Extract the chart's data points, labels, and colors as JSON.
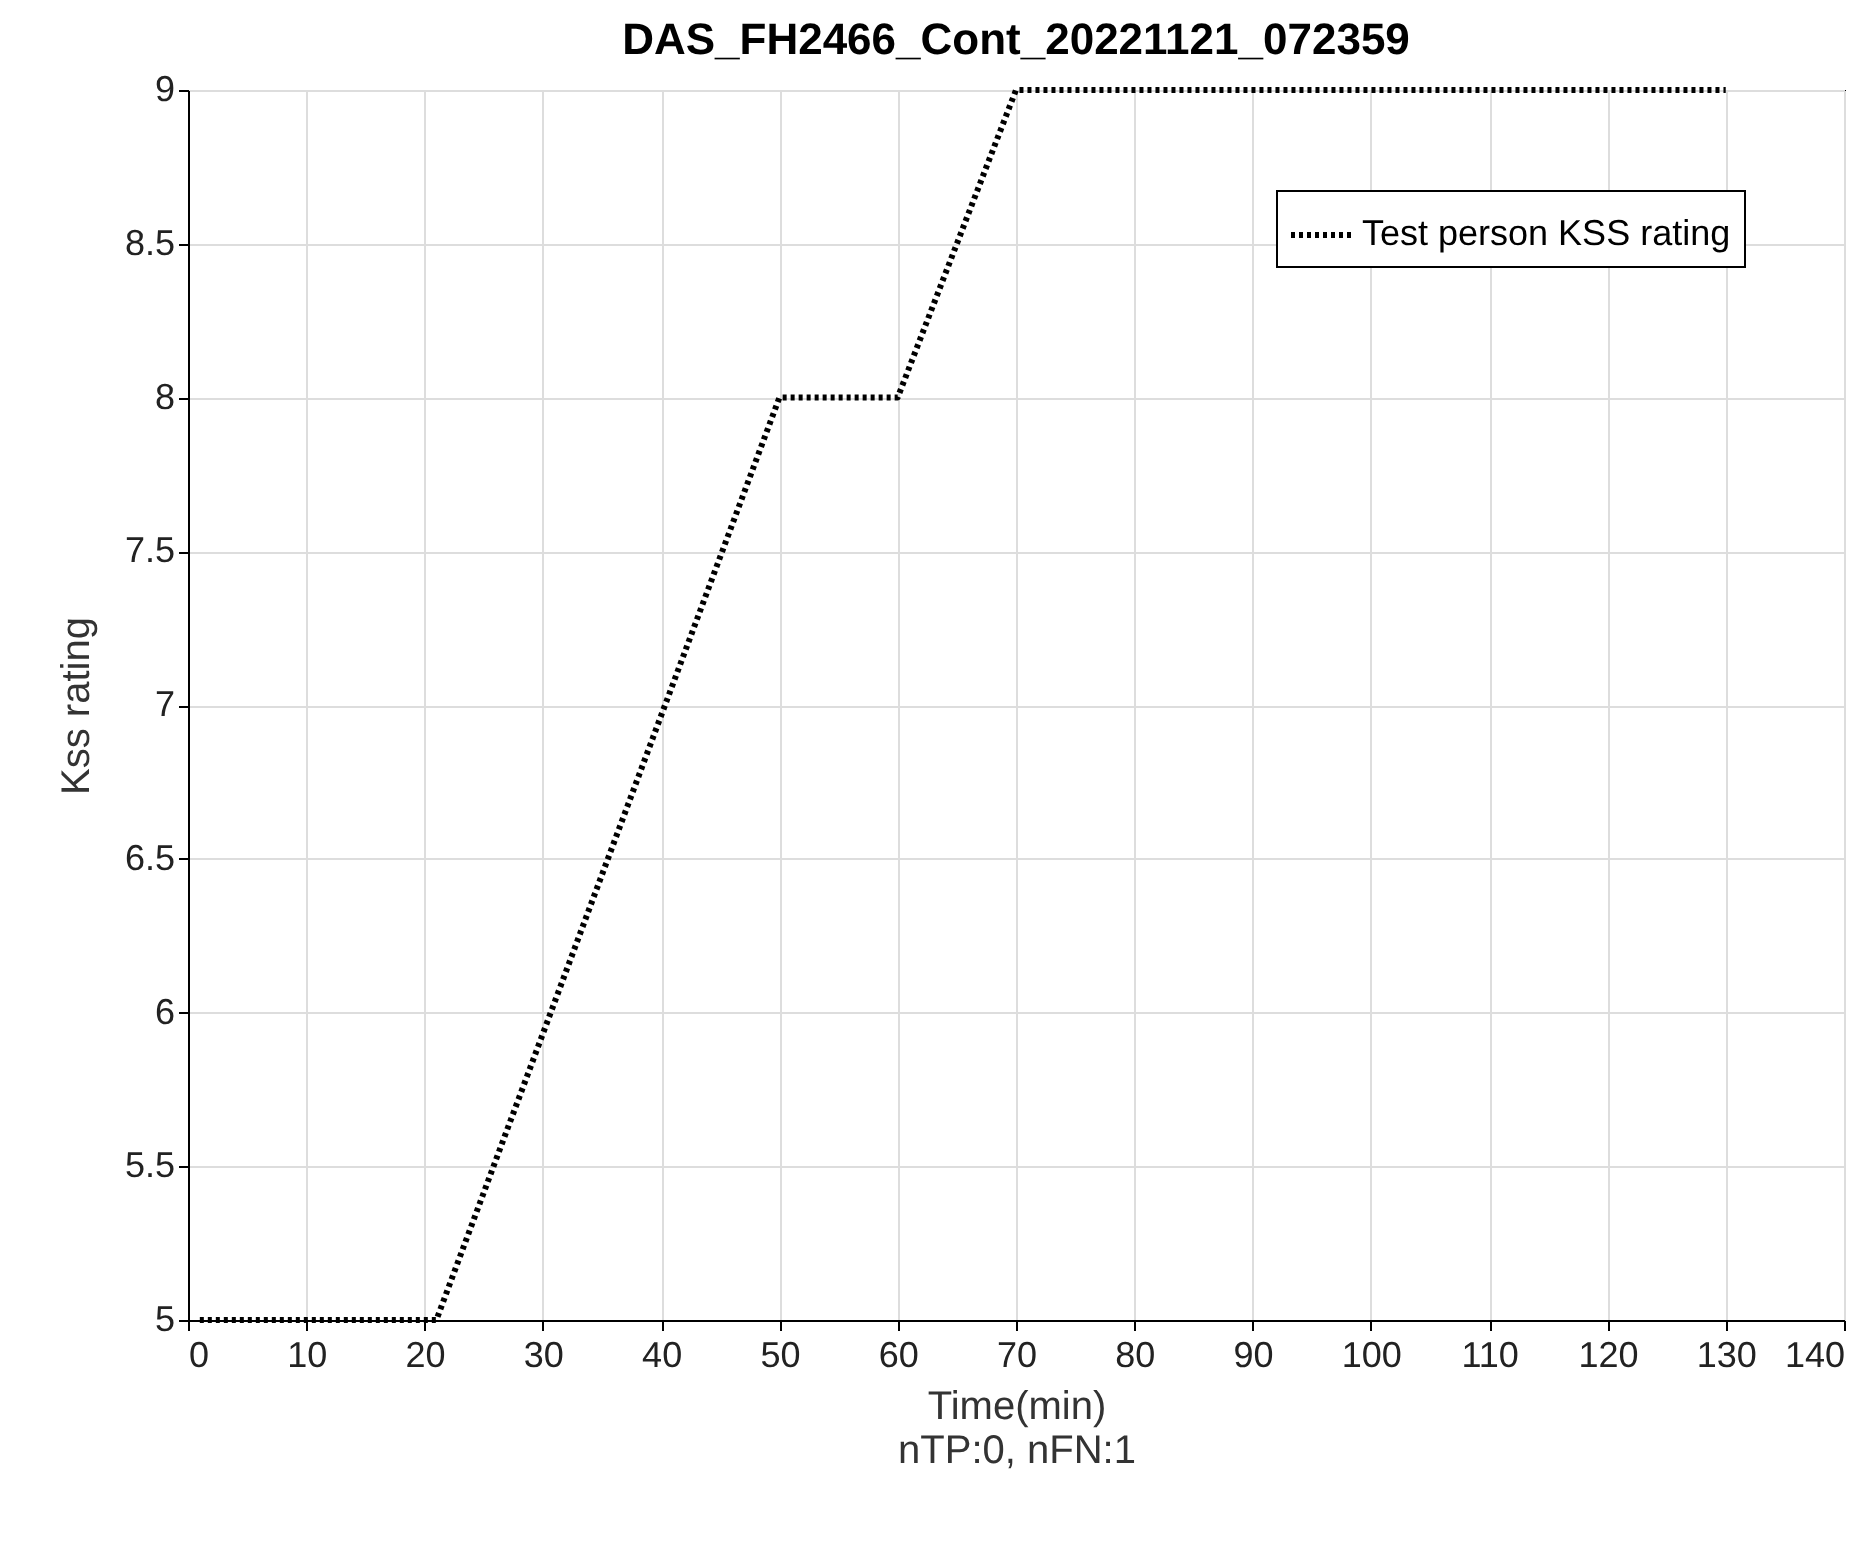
{
  "chart_data": {
    "type": "line",
    "title": "DAS_FH2466_Cont_20221121_072359",
    "xlabel": "Time(min)",
    "ylabel": "Kss rating",
    "annotations": [
      "nTP:0, nFN:1"
    ],
    "x": [
      1,
      21,
      50,
      60,
      70,
      130
    ],
    "series": [
      {
        "name": "Test person KSS rating",
        "color": "#000000",
        "values": [
          5,
          5,
          8,
          8,
          9,
          9
        ]
      }
    ],
    "xlim": [
      0,
      140
    ],
    "xticks": [
      0,
      10,
      20,
      30,
      40,
      50,
      60,
      70,
      80,
      90,
      100,
      110,
      120,
      130,
      140
    ],
    "ylim": [
      5,
      9
    ],
    "yticks": [
      5,
      5.5,
      6,
      6.5,
      7,
      7.5,
      8,
      8.5,
      9
    ],
    "grid": true,
    "legend": "top right",
    "line_style": "dotted",
    "marker": "none"
  }
}
